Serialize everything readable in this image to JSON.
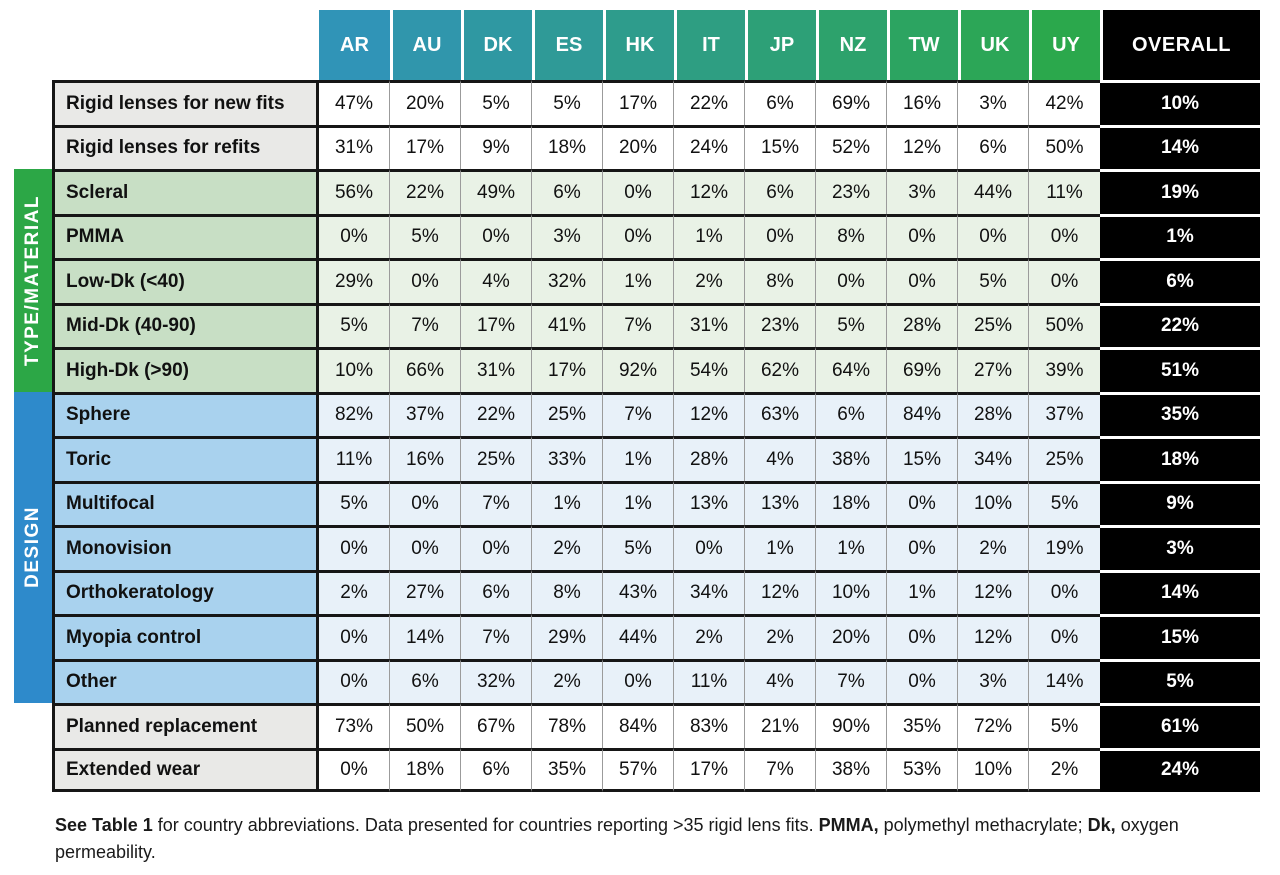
{
  "colors": {
    "header_gradient_start": "#3094B7",
    "header_gradient_end": "#2BA84C",
    "overall_bg": "#000000",
    "overall_text": "#FFFFFF",
    "group_type_material": "#2CA746",
    "group_design": "#2E8ACB",
    "label_plain_bg": "#E9E9E7",
    "label_green_bg": "#C8DFC5",
    "label_blue_bg": "#A9D2EE",
    "cell_green_bg": "#E9F2E6",
    "cell_blue_bg": "#E8F1F9",
    "grid_line": "#161616"
  },
  "chart_data": {
    "type": "table",
    "columns": [
      "AR",
      "AU",
      "DK",
      "ES",
      "HK",
      "IT",
      "JP",
      "NZ",
      "TW",
      "UK",
      "UY"
    ],
    "overall_column": "OVERALL",
    "groups": [
      {
        "label": "TYPE/MATERIAL",
        "color": "#2CA746"
      },
      {
        "label": "DESIGN",
        "color": "#2E8ACB"
      }
    ],
    "rows": [
      {
        "label": "Rigid lenses for new fits",
        "group": "none",
        "values": [
          "47%",
          "20%",
          "5%",
          "5%",
          "17%",
          "22%",
          "6%",
          "69%",
          "16%",
          "3%",
          "42%"
        ],
        "overall": "10%"
      },
      {
        "label": "Rigid lenses for refits",
        "group": "none",
        "values": [
          "31%",
          "17%",
          "9%",
          "18%",
          "20%",
          "24%",
          "15%",
          "52%",
          "12%",
          "6%",
          "50%"
        ],
        "overall": "14%"
      },
      {
        "label": "Scleral",
        "group": "type_material",
        "values": [
          "56%",
          "22%",
          "49%",
          "6%",
          "0%",
          "12%",
          "6%",
          "23%",
          "3%",
          "44%",
          "11%"
        ],
        "overall": "19%"
      },
      {
        "label": "PMMA",
        "group": "type_material",
        "values": [
          "0%",
          "5%",
          "0%",
          "3%",
          "0%",
          "1%",
          "0%",
          "8%",
          "0%",
          "0%",
          "0%"
        ],
        "overall": "1%"
      },
      {
        "label": "Low-Dk (<40)",
        "group": "type_material",
        "values": [
          "29%",
          "0%",
          "4%",
          "32%",
          "1%",
          "2%",
          "8%",
          "0%",
          "0%",
          "5%",
          "0%"
        ],
        "overall": "6%"
      },
      {
        "label": "Mid-Dk (40-90)",
        "group": "type_material",
        "values": [
          "5%",
          "7%",
          "17%",
          "41%",
          "7%",
          "31%",
          "23%",
          "5%",
          "28%",
          "25%",
          "50%"
        ],
        "overall": "22%"
      },
      {
        "label": "High-Dk (>90)",
        "group": "type_material",
        "values": [
          "10%",
          "66%",
          "31%",
          "17%",
          "92%",
          "54%",
          "62%",
          "64%",
          "69%",
          "27%",
          "39%"
        ],
        "overall": "51%"
      },
      {
        "label": "Sphere",
        "group": "design",
        "values": [
          "82%",
          "37%",
          "22%",
          "25%",
          "7%",
          "12%",
          "63%",
          "6%",
          "84%",
          "28%",
          "37%"
        ],
        "overall": "35%"
      },
      {
        "label": "Toric",
        "group": "design",
        "values": [
          "11%",
          "16%",
          "25%",
          "33%",
          "1%",
          "28%",
          "4%",
          "38%",
          "15%",
          "34%",
          "25%"
        ],
        "overall": "18%"
      },
      {
        "label": "Multifocal",
        "group": "design",
        "values": [
          "5%",
          "0%",
          "7%",
          "1%",
          "1%",
          "13%",
          "13%",
          "18%",
          "0%",
          "10%",
          "5%"
        ],
        "overall": "9%"
      },
      {
        "label": "Monovision",
        "group": "design",
        "values": [
          "0%",
          "0%",
          "0%",
          "2%",
          "5%",
          "0%",
          "1%",
          "1%",
          "0%",
          "2%",
          "19%"
        ],
        "overall": "3%"
      },
      {
        "label": "Orthokeratology",
        "group": "design",
        "values": [
          "2%",
          "27%",
          "6%",
          "8%",
          "43%",
          "34%",
          "12%",
          "10%",
          "1%",
          "12%",
          "0%"
        ],
        "overall": "14%"
      },
      {
        "label": "Myopia control",
        "group": "design",
        "values": [
          "0%",
          "14%",
          "7%",
          "29%",
          "44%",
          "2%",
          "2%",
          "20%",
          "0%",
          "12%",
          "0%"
        ],
        "overall": "15%"
      },
      {
        "label": "Other",
        "group": "design",
        "values": [
          "0%",
          "6%",
          "32%",
          "2%",
          "0%",
          "11%",
          "4%",
          "7%",
          "0%",
          "3%",
          "14%"
        ],
        "overall": "5%"
      },
      {
        "label": "Planned replacement",
        "group": "none",
        "values": [
          "73%",
          "50%",
          "67%",
          "78%",
          "84%",
          "83%",
          "21%",
          "90%",
          "35%",
          "72%",
          "5%"
        ],
        "overall": "61%"
      },
      {
        "label": "Extended wear",
        "group": "none",
        "values": [
          "0%",
          "18%",
          "6%",
          "35%",
          "57%",
          "17%",
          "7%",
          "38%",
          "53%",
          "10%",
          "2%"
        ],
        "overall": "24%"
      }
    ]
  },
  "footnote": {
    "segments": [
      {
        "text": "See Table 1",
        "bold": true
      },
      {
        "text": " for country abbreviations. Data presented for countries reporting >35 rigid lens fits. ",
        "bold": false
      },
      {
        "text": "PMMA,",
        "bold": true
      },
      {
        "text": " polymethyl methacrylate; ",
        "bold": false
      },
      {
        "text": "Dk,",
        "bold": true
      },
      {
        "text": " oxygen permeability.",
        "bold": false
      }
    ]
  }
}
